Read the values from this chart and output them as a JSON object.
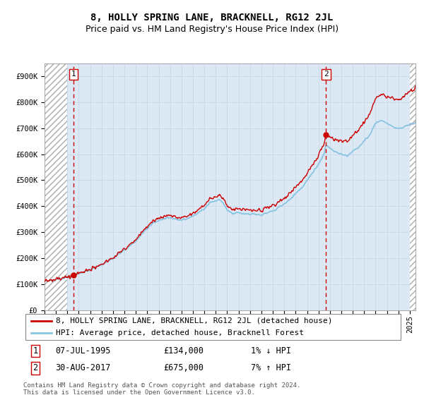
{
  "title": "8, HOLLY SPRING LANE, BRACKNELL, RG12 2JL",
  "subtitle": "Price paid vs. HM Land Registry's House Price Index (HPI)",
  "ylim": [
    0,
    950000
  ],
  "yticks": [
    0,
    100000,
    200000,
    300000,
    400000,
    500000,
    600000,
    700000,
    800000,
    900000
  ],
  "ytick_labels": [
    "£0",
    "£100K",
    "£200K",
    "£300K",
    "£400K",
    "£500K",
    "£600K",
    "£700K",
    "£800K",
    "£900K"
  ],
  "xlim_start": 1993.0,
  "xlim_end": 2025.5,
  "hpi_color": "#89c4e1",
  "price_color": "#cc0000",
  "dashed_color": "#cc0000",
  "grid_color": "#c8d8ea",
  "plot_bg": "#dce9f5",
  "legend_items": [
    "8, HOLLY SPRING LANE, BRACKNELL, RG12 2JL (detached house)",
    "HPI: Average price, detached house, Bracknell Forest"
  ],
  "sale1_date": 1995.52,
  "sale1_price": 134000,
  "sale2_date": 2017.66,
  "sale2_price": 675000,
  "footnote": "Contains HM Land Registry data © Crown copyright and database right 2024.\nThis data is licensed under the Open Government Licence v3.0.",
  "title_fontsize": 10,
  "subtitle_fontsize": 9,
  "tick_fontsize": 7.5,
  "legend_fontsize": 8,
  "annotation_fontsize": 8.5
}
